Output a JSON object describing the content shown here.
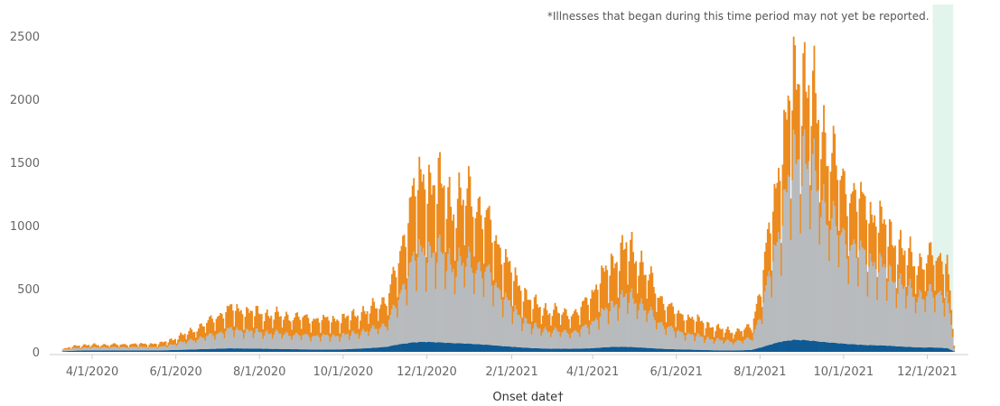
{
  "chart_data": {
    "type": "bar",
    "stacked": true,
    "title": "",
    "xlabel": "Onset date†",
    "ylabel": "",
    "ylim": [
      0,
      2600
    ],
    "grid": false,
    "x_start": "2020-03-01",
    "x_end": "2021-12-31",
    "y_ticks": [
      "0",
      "500",
      "1000",
      "1500",
      "2000",
      "2500"
    ],
    "x_tick_labels": [
      "4/1/2020",
      "6/1/2020",
      "8/1/2020",
      "10/1/2020",
      "12/1/2020",
      "2/1/2021",
      "4/1/2021",
      "6/1/2021",
      "8/1/2021",
      "10/1/2021",
      "12/1/2021"
    ],
    "x_ticks": [
      "2020-04-01",
      "2020-06-01",
      "2020-08-01",
      "2020-10-01",
      "2020-12-01",
      "2021-02-01",
      "2021-04-01",
      "2021-06-01",
      "2021-08-01",
      "2021-10-01",
      "2021-12-01"
    ],
    "annotation": "*Illnesses that began during this time period may not yet be reported.",
    "shaded_region": {
      "start": "2021-12-05",
      "end": "2021-12-20",
      "color": "#e2f4ec"
    },
    "series": [
      {
        "color": "#0f5a94"
      },
      {
        "color": "#b8bbbd"
      },
      {
        "color": "#ec8b1e"
      }
    ],
    "control_points": {
      "dates": [
        "2020-03-10",
        "2020-03-20",
        "2020-04-01",
        "2020-05-01",
        "2020-05-20",
        "2020-06-01",
        "2020-06-15",
        "2020-07-01",
        "2020-07-10",
        "2020-07-20",
        "2020-08-01",
        "2020-08-20",
        "2020-09-01",
        "2020-09-15",
        "2020-10-01",
        "2020-10-20",
        "2020-11-01",
        "2020-11-10",
        "2020-11-20",
        "2020-12-01",
        "2020-12-10",
        "2020-12-20",
        "2021-01-01",
        "2021-01-15",
        "2021-02-01",
        "2021-02-15",
        "2021-03-01",
        "2021-03-20",
        "2021-04-01",
        "2021-04-15",
        "2021-04-25",
        "2021-05-05",
        "2021-05-20",
        "2021-06-01",
        "2021-06-20",
        "2021-07-01",
        "2021-07-15",
        "2021-07-25",
        "2021-08-01",
        "2021-08-15",
        "2021-08-25",
        "2021-09-01",
        "2021-09-10",
        "2021-09-20",
        "2021-10-01",
        "2021-10-15",
        "2021-11-01",
        "2021-11-15",
        "2021-11-25",
        "2021-12-05",
        "2021-12-15",
        "2021-12-18",
        "2021-12-20"
      ],
      "total": [
        20,
        50,
        55,
        60,
        65,
        110,
        180,
        280,
        340,
        320,
        300,
        280,
        270,
        250,
        260,
        330,
        420,
        700,
        1250,
        1350,
        1300,
        1150,
        1250,
        1000,
        600,
        380,
        320,
        300,
        480,
        700,
        820,
        720,
        420,
        300,
        230,
        180,
        160,
        200,
        500,
        1500,
        2100,
        2200,
        1900,
        1600,
        1300,
        1150,
        950,
        760,
        700,
        750,
        720,
        300,
        80
      ],
      "blue": [
        5,
        10,
        12,
        12,
        12,
        15,
        20,
        25,
        28,
        27,
        25,
        22,
        20,
        18,
        20,
        30,
        40,
        60,
        75,
        80,
        75,
        70,
        65,
        55,
        40,
        30,
        25,
        25,
        30,
        40,
        40,
        35,
        25,
        20,
        15,
        12,
        12,
        15,
        35,
        80,
        95,
        95,
        85,
        75,
        65,
        55,
        50,
        40,
        35,
        35,
        30,
        15,
        5
      ],
      "gray": [
        10,
        20,
        22,
        25,
        25,
        50,
        80,
        120,
        150,
        140,
        130,
        120,
        110,
        105,
        110,
        140,
        180,
        350,
        650,
        720,
        700,
        620,
        650,
        550,
        300,
        170,
        140,
        130,
        210,
        330,
        400,
        350,
        200,
        140,
        100,
        80,
        70,
        90,
        250,
        900,
        1400,
        1500,
        1250,
        1000,
        820,
        700,
        580,
        450,
        410,
        430,
        420,
        180,
        40
      ]
    }
  }
}
